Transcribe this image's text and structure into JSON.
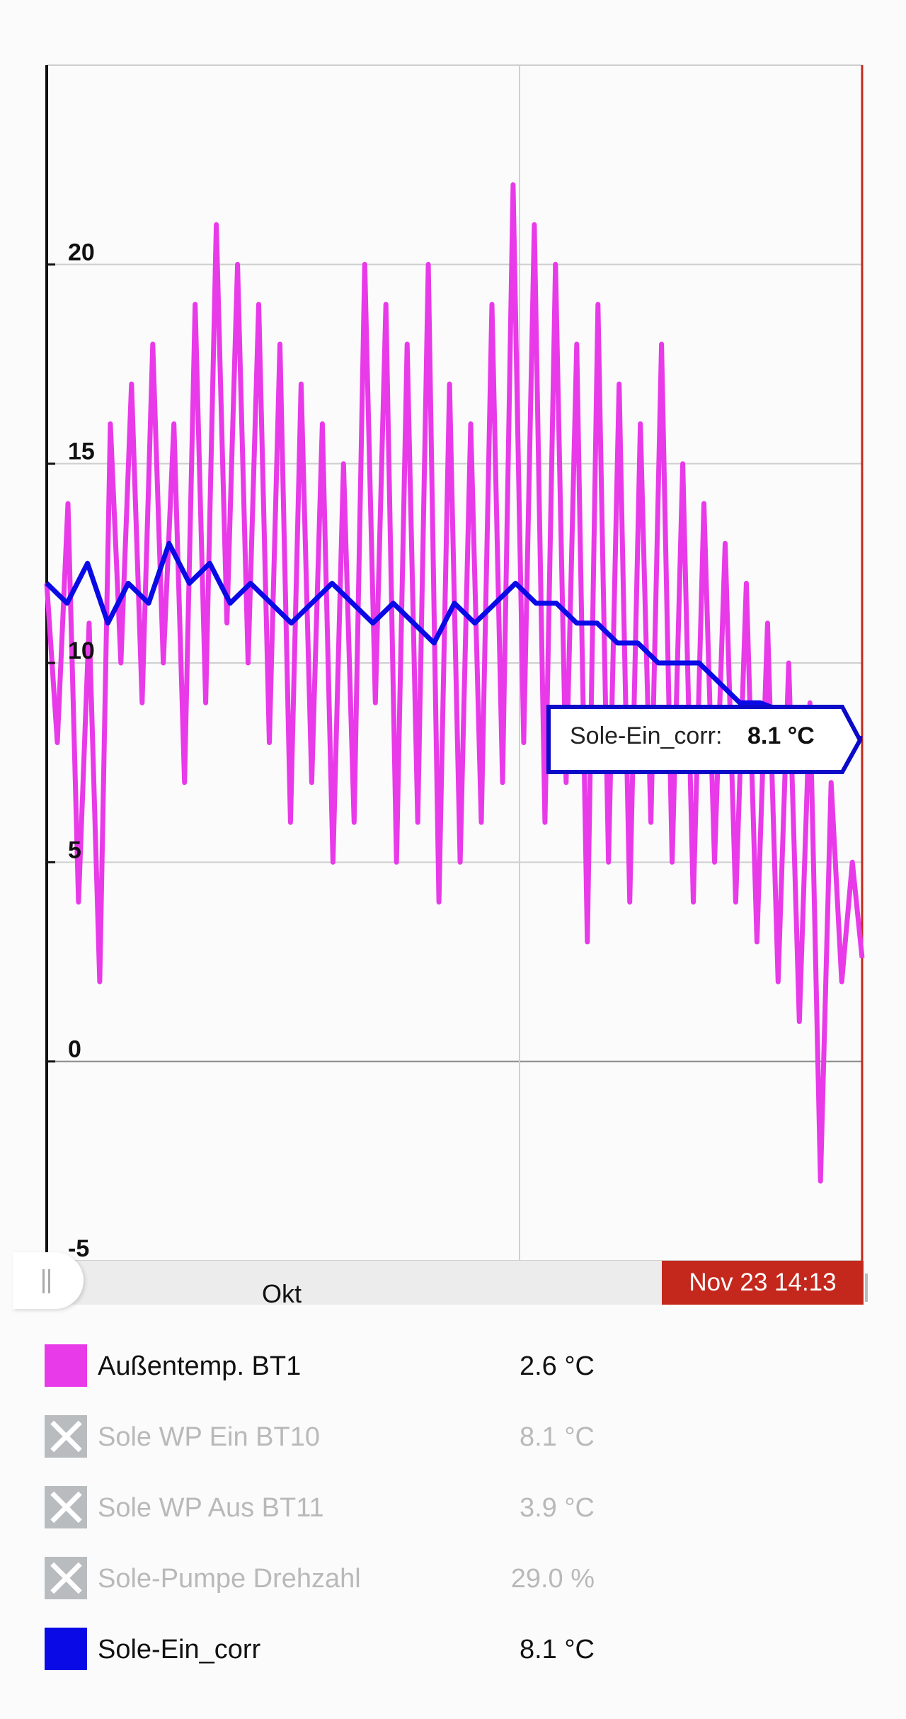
{
  "chart_data": {
    "type": "line",
    "ylim": [
      -5,
      25
    ],
    "y_ticks": [
      -5,
      0,
      5,
      10,
      15,
      20
    ],
    "grid": true,
    "series": [
      {
        "name": "Außentemp. BT1",
        "color": "#e83ae8",
        "x": [
          0,
          1.3,
          2.6,
          3.9,
          5.2,
          6.5,
          7.8,
          9.1,
          10.4,
          11.7,
          13,
          14.3,
          15.6,
          16.9,
          18.2,
          19.5,
          20.8,
          22.1,
          23.4,
          24.7,
          26,
          27.3,
          28.6,
          29.9,
          31.2,
          32.5,
          33.8,
          35.1,
          36.4,
          37.7,
          39,
          40.3,
          41.6,
          42.9,
          44.2,
          45.5,
          46.8,
          48.1,
          49.4,
          50.7,
          52,
          53.3,
          54.6,
          55.9,
          57.2,
          58.5,
          59.8,
          61.1,
          62.4,
          63.7,
          65,
          66.3,
          67.6,
          68.9,
          70.2,
          71.5,
          72.8,
          74.1,
          75.4,
          76.7,
          78,
          79.3,
          80.6,
          81.9,
          83.2,
          84.5,
          85.8,
          87.1,
          88.4,
          89.7,
          91,
          92.3,
          93.6,
          94.9,
          96.2,
          97.5,
          98.8,
          100
        ],
        "values": [
          12,
          8,
          14,
          4,
          11,
          2,
          16,
          10,
          17,
          9,
          18,
          10,
          16,
          7,
          19,
          9,
          21,
          11,
          20,
          10,
          19,
          8,
          18,
          6,
          17,
          7,
          16,
          5,
          15,
          6,
          20,
          9,
          19,
          5,
          18,
          6,
          20,
          4,
          17,
          5,
          16,
          6,
          19,
          7,
          22,
          8,
          21,
          6,
          20,
          7,
          18,
          3,
          19,
          5,
          17,
          4,
          16,
          6,
          18,
          5,
          15,
          4,
          14,
          5,
          13,
          4,
          12,
          3,
          11,
          2,
          10,
          1,
          9,
          -3,
          7,
          2,
          5,
          2.6
        ]
      },
      {
        "name": "Sole WP Ein BT10",
        "color": "#b8bcbf",
        "disabled": true,
        "last_value": "8.1 °C"
      },
      {
        "name": "Sole WP Aus BT11",
        "color": "#b8bcbf",
        "disabled": true,
        "last_value": "3.9 °C"
      },
      {
        "name": "Sole-Pumpe Drehzahl",
        "color": "#b8bcbf",
        "disabled": true,
        "last_value": "29.0 %"
      },
      {
        "name": "Sole-Ein_corr",
        "color": "#0a0ae6",
        "x": [
          0,
          2.5,
          5,
          7.5,
          10,
          12.5,
          15,
          17.5,
          20,
          22.5,
          25,
          27.5,
          30,
          32.5,
          35,
          37.5,
          40,
          42.5,
          45,
          47.5,
          50,
          52.5,
          55,
          57.5,
          60,
          62.5,
          65,
          67.5,
          70,
          72.5,
          75,
          77.5,
          80,
          82.5,
          85,
          87.5,
          90,
          92.5,
          95,
          97.5,
          100
        ],
        "values": [
          12,
          11.5,
          12.5,
          11,
          12,
          11.5,
          13,
          12,
          12.5,
          11.5,
          12,
          11.5,
          11,
          11.5,
          12,
          11.5,
          11,
          11.5,
          11,
          10.5,
          11.5,
          11,
          11.5,
          12,
          11.5,
          11.5,
          11,
          11,
          10.5,
          10.5,
          10,
          10,
          10,
          9.5,
          9,
          9,
          8.8,
          8.5,
          8.3,
          8.2,
          8.1
        ]
      }
    ],
    "x_label": "Okt",
    "cursor_label": "Nov 23 14:13",
    "tooltip": {
      "series": "Sole-Ein_corr:",
      "value": "8.1 °C"
    }
  },
  "legend": [
    {
      "name": "Außentemp. BT1",
      "value": "2.6 °C"
    },
    {
      "name": "Sole WP Ein BT10",
      "value": "8.1 °C"
    },
    {
      "name": "Sole WP Aus BT11",
      "value": "3.9 °C"
    },
    {
      "name": "Sole-Pumpe Drehzahl",
      "value": "29.0 %"
    },
    {
      "name": "Sole-Ein_corr",
      "value": "8.1 °C"
    }
  ]
}
